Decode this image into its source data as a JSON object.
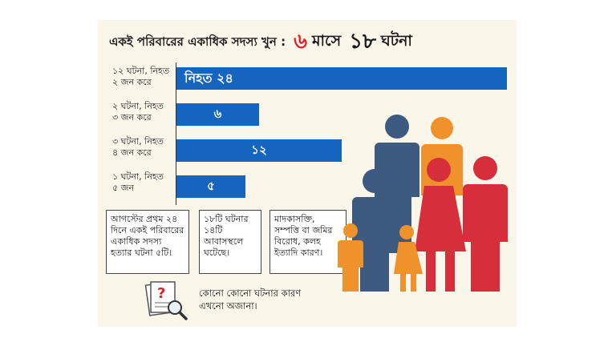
{
  "header": {
    "title": "একই পরিবারের একাধিক সদস্য খুন :",
    "months_number": "৬",
    "months_word": "মাসে",
    "events_number": "১৮",
    "events_word": "ঘটনা"
  },
  "chart_data": {
    "type": "bar",
    "orientation": "horizontal",
    "categories": [
      "১২ ঘটনা, নিহত ২ জন করে",
      "২ ঘটনা, নিহত ৩ জন করে",
      "৩ ঘটনা, নিহত ৪ জন করে",
      "১ ঘটনা, নিহত ৫ জন"
    ],
    "values": [
      24,
      6,
      12,
      5
    ],
    "data_labels": [
      "নিহত ২৪",
      "৬",
      "১২",
      "৫"
    ],
    "xlim": [
      0,
      24
    ],
    "color": "#1565c0"
  },
  "rows": [
    {
      "line1": "১২ ঘটনা, নিহত",
      "line2": "২ জন করে"
    },
    {
      "line1": "২ ঘটনা, নিহত",
      "line2": "৩ জন করে"
    },
    {
      "line1": "৩ ঘটনা, নিহত",
      "line2": "৪ জন করে"
    },
    {
      "line1": "১ ঘটনা, নিহত",
      "line2": "৫ জন"
    }
  ],
  "notes": [
    {
      "lines": [
        "আগস্টের প্রথম ২৪",
        "দিনে একই পরিবারের",
        "একাধিক সদস্য",
        "হত্যার ঘটনা ৫টি।"
      ]
    },
    {
      "lines": [
        "১৮টি ঘটনার",
        "১৪টি",
        "আবাসস্থলে",
        "ঘটেছে।"
      ]
    },
    {
      "lines": [
        "মাদকাসক্তি,",
        "সম্পত্তি বা জমির",
        "বিরোধ, কলহ",
        "ইত্যাদি কারণ।"
      ]
    }
  ],
  "footer": {
    "line1": "কোনো কোনো ঘটনার কারণ",
    "line2": "এখনো অজানা।"
  },
  "colors": {
    "bar": "#1565c0",
    "accent_red": "#d9262e",
    "figure_blue": "#3d5a80",
    "figure_orange": "#f0922b",
    "figure_red": "#d62e3a",
    "background": "#fbf6ea"
  },
  "icons": [
    "document-question-icon",
    "magnifier-icon",
    "family-figures-icon"
  ]
}
